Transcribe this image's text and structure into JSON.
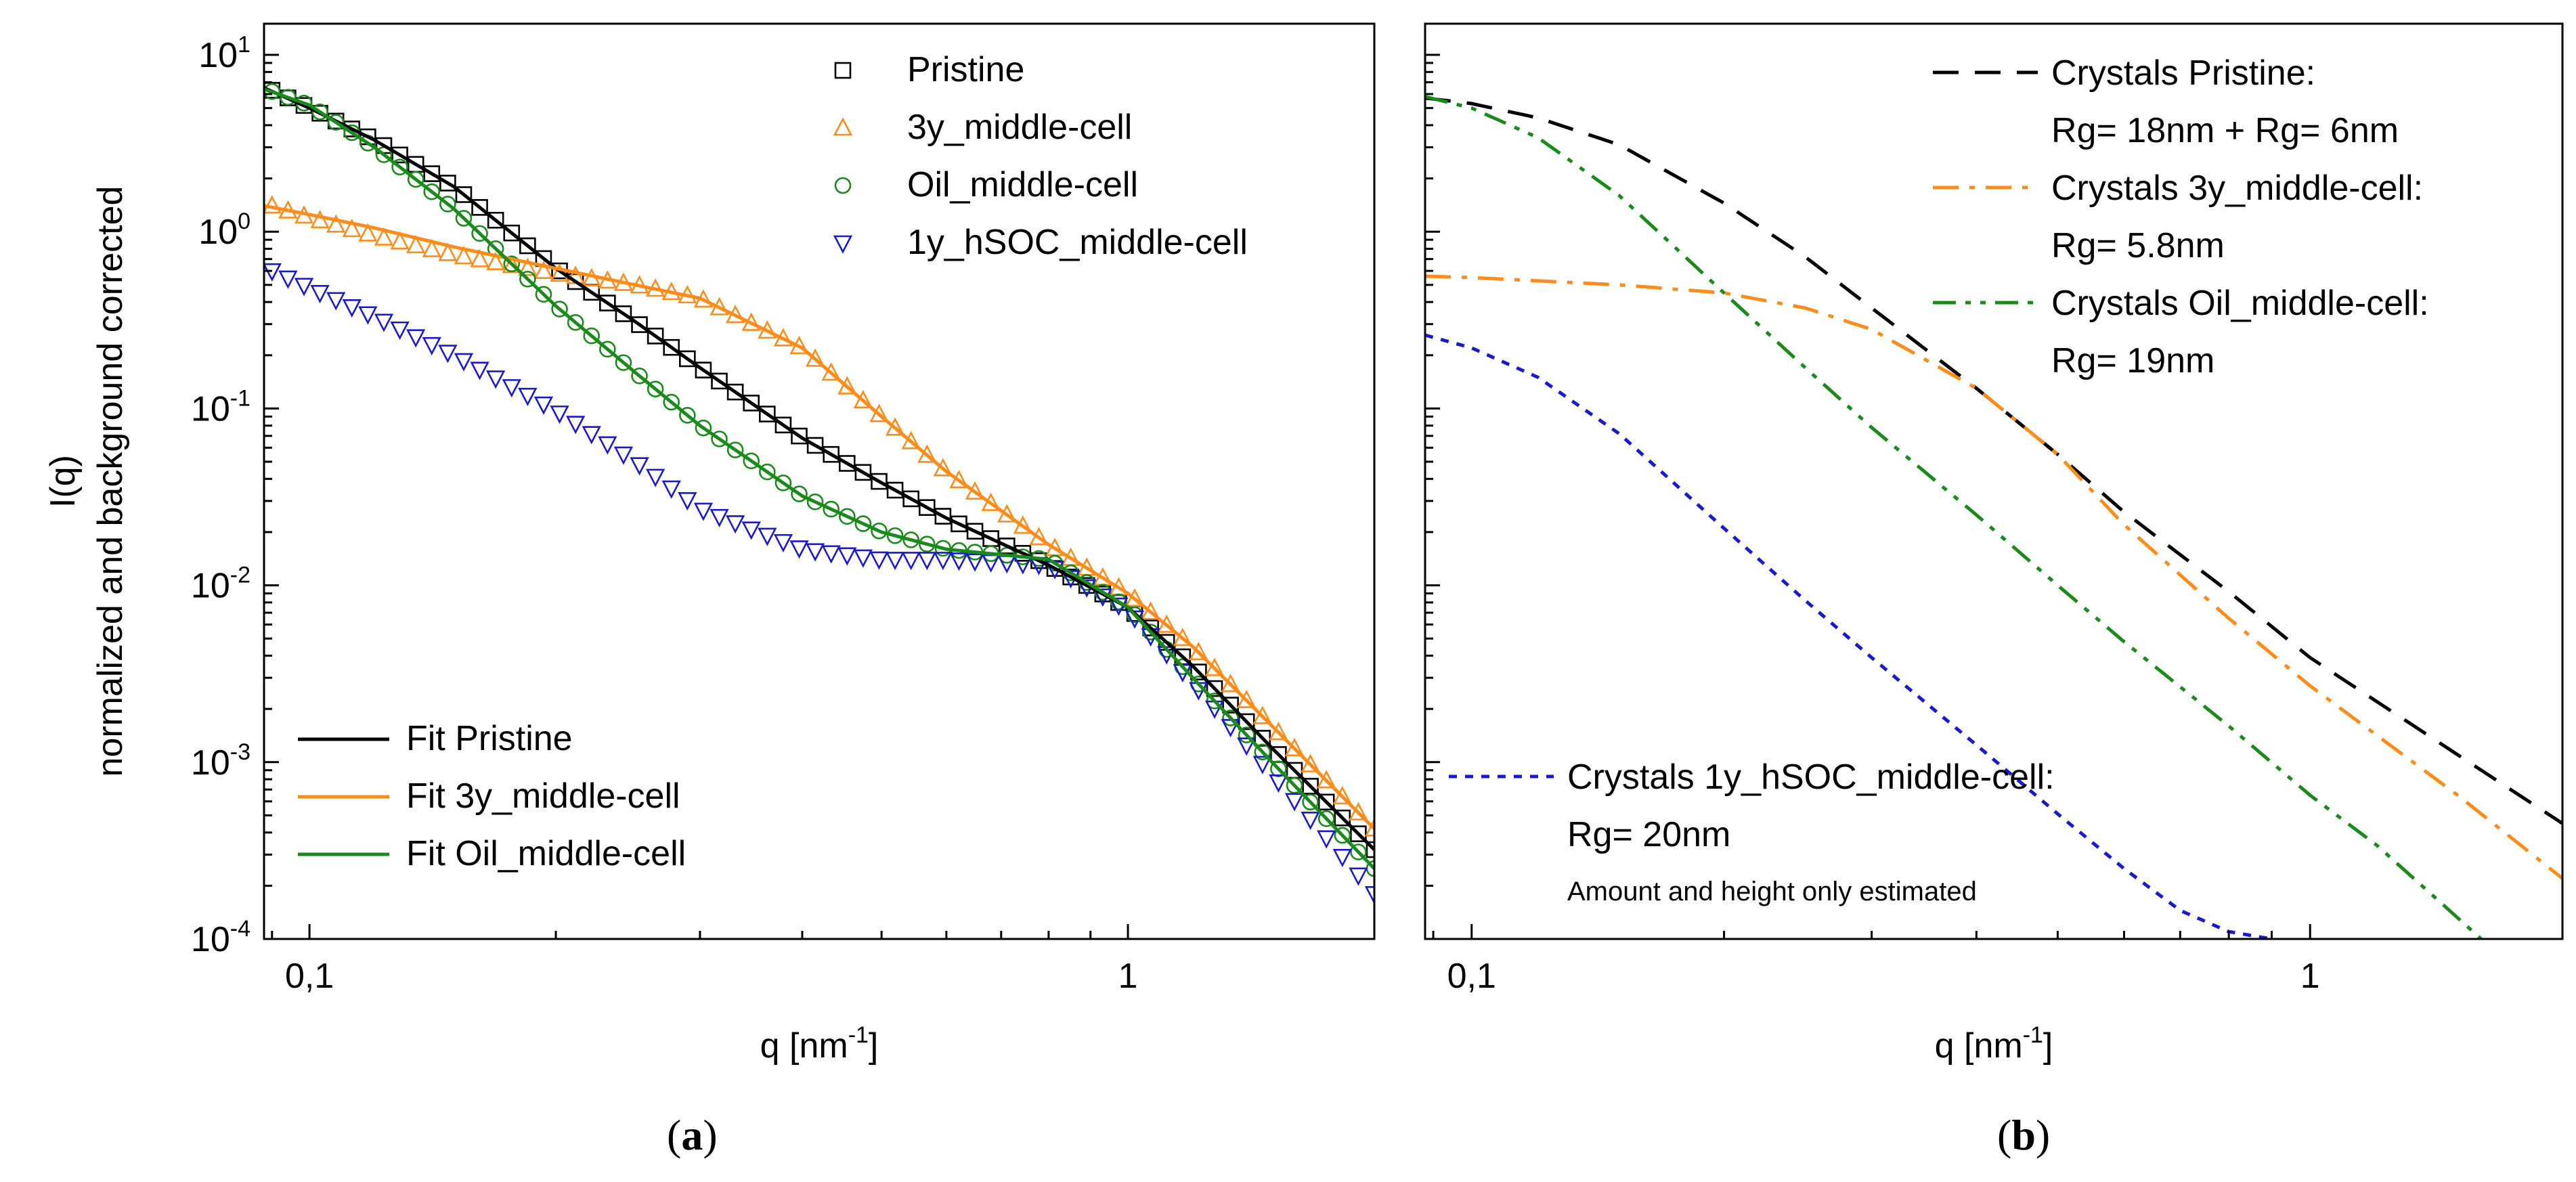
{
  "chart_data": [
    {
      "type": "scatter",
      "panel_label": "a",
      "title": "",
      "xlabel": "q [nm",
      "xlabel_sup": "-1",
      "xlabel_end": "]",
      "ylabel_line1": "I(q)",
      "ylabel_line2": "normalized and background corrected",
      "xscale": "log",
      "yscale": "log",
      "xlim": [
        0.088,
        2.0
      ],
      "ylim": [
        0.0001,
        15
      ],
      "x_ticks": [
        {
          "value": 0.1,
          "label": "0,1"
        },
        {
          "value": 1,
          "label": "1"
        }
      ],
      "y_ticks": [
        {
          "value": 10,
          "base": "10",
          "exp": "1"
        },
        {
          "value": 1,
          "base": "10",
          "exp": "0"
        },
        {
          "value": 0.1,
          "base": "10",
          "exp": "-1"
        },
        {
          "value": 0.01,
          "base": "10",
          "exp": "-2"
        },
        {
          "value": 0.001,
          "base": "10",
          "exp": "-3"
        },
        {
          "value": 0.0001,
          "base": "10",
          "exp": "-4"
        }
      ],
      "legend_markers": [
        {
          "name": "Pristine",
          "marker": "square",
          "color": "#000000"
        },
        {
          "name": "3y_middle-cell",
          "marker": "triangle-up",
          "color": "#ff8c1a"
        },
        {
          "name": "Oil_middle-cell",
          "marker": "circle",
          "color": "#1a8a1a"
        },
        {
          "name": "1y_hSOC_middle-cell",
          "marker": "triangle-down",
          "color": "#1a1acc"
        }
      ],
      "legend_lines": [
        {
          "name": "Fit Pristine",
          "color": "#000000"
        },
        {
          "name": "Fit 3y_middle-cell",
          "color": "#ff8c1a"
        },
        {
          "name": "Fit Oil_middle-cell",
          "color": "#1a8a1a"
        }
      ],
      "series": [
        {
          "name": "Pristine",
          "marker": "square",
          "color": "#000000",
          "x": [
            0.09,
            0.1,
            0.12,
            0.15,
            0.2,
            0.25,
            0.3,
            0.4,
            0.5,
            0.6,
            0.8,
            1.0,
            1.2,
            1.5,
            2.0
          ],
          "y": [
            6.3,
            5.0,
            3.3,
            1.8,
            0.62,
            0.31,
            0.17,
            0.068,
            0.038,
            0.024,
            0.013,
            0.0075,
            0.0035,
            0.0012,
            0.00032
          ]
        },
        {
          "name": "3y_middle-cell",
          "marker": "triangle-up",
          "color": "#ff8c1a",
          "x": [
            0.09,
            0.1,
            0.12,
            0.15,
            0.2,
            0.25,
            0.3,
            0.4,
            0.5,
            0.6,
            0.8,
            1.0,
            1.2,
            1.5,
            2.0
          ],
          "y": [
            1.4,
            1.2,
            0.95,
            0.74,
            0.58,
            0.5,
            0.42,
            0.22,
            0.09,
            0.044,
            0.017,
            0.009,
            0.0045,
            0.0016,
            0.00042
          ]
        },
        {
          "name": "Oil_middle-cell",
          "marker": "circle",
          "color": "#1a8a1a",
          "x": [
            0.09,
            0.1,
            0.12,
            0.15,
            0.2,
            0.25,
            0.3,
            0.4,
            0.5,
            0.6,
            0.8,
            1.0,
            1.2,
            1.5,
            2.0
          ],
          "y": [
            6.2,
            5.2,
            3.0,
            1.35,
            0.38,
            0.16,
            0.08,
            0.032,
            0.02,
            0.016,
            0.014,
            0.0075,
            0.003,
            0.001,
            0.00025
          ]
        },
        {
          "name": "1y_hSOC_middle-cell",
          "marker": "triangle-down",
          "color": "#1a1acc",
          "x": [
            0.09,
            0.1,
            0.12,
            0.15,
            0.2,
            0.25,
            0.3,
            0.4,
            0.5,
            0.6,
            0.8,
            1.0,
            1.2,
            1.5,
            2.0
          ],
          "y": [
            0.6,
            0.48,
            0.33,
            0.2,
            0.097,
            0.05,
            0.027,
            0.016,
            0.014,
            0.014,
            0.013,
            0.0072,
            0.0028,
            0.00085,
            0.00018
          ]
        }
      ],
      "fits": [
        {
          "name": "Fit Pristine",
          "color": "#000000",
          "x": [
            0.088,
            0.1,
            0.12,
            0.15,
            0.2,
            0.25,
            0.3,
            0.4,
            0.5,
            0.6,
            0.8,
            1.0,
            1.2,
            1.5,
            2.0
          ],
          "y": [
            6.5,
            5.0,
            3.3,
            1.8,
            0.62,
            0.31,
            0.17,
            0.068,
            0.038,
            0.024,
            0.013,
            0.0075,
            0.0035,
            0.0012,
            0.00032
          ]
        },
        {
          "name": "Fit 3y_middle-cell",
          "color": "#ff8c1a",
          "x": [
            0.088,
            0.1,
            0.12,
            0.15,
            0.2,
            0.25,
            0.3,
            0.4,
            0.5,
            0.6,
            0.8,
            1.0,
            1.2,
            1.5,
            2.0
          ],
          "y": [
            1.4,
            1.25,
            1.05,
            0.82,
            0.62,
            0.5,
            0.42,
            0.22,
            0.09,
            0.044,
            0.017,
            0.009,
            0.0045,
            0.0016,
            0.00042
          ]
        },
        {
          "name": "Fit Oil_middle-cell",
          "color": "#1a8a1a",
          "x": [
            0.088,
            0.1,
            0.12,
            0.15,
            0.2,
            0.25,
            0.3,
            0.4,
            0.5,
            0.6,
            0.8,
            1.0,
            1.2,
            1.5,
            2.0
          ],
          "y": [
            6.4,
            5.2,
            3.0,
            1.35,
            0.38,
            0.16,
            0.08,
            0.032,
            0.02,
            0.016,
            0.014,
            0.0075,
            0.003,
            0.001,
            0.00025
          ]
        }
      ]
    },
    {
      "type": "line",
      "panel_label": "b",
      "title": "",
      "xlabel": "q [nm",
      "xlabel_sup": "-1",
      "xlabel_end": "]",
      "xscale": "log",
      "yscale": "log",
      "xlim": [
        0.088,
        2.0
      ],
      "ylim": [
        0.0001,
        15
      ],
      "x_ticks": [
        {
          "value": 0.1,
          "label": "0,1"
        },
        {
          "value": 1,
          "label": "1"
        }
      ],
      "series": [
        {
          "name": "Crystals Pristine:",
          "sub": "Rg= 18nm + Rg= 6nm",
          "dash": "dash",
          "color": "#000000",
          "x": [
            0.088,
            0.1,
            0.12,
            0.15,
            0.2,
            0.25,
            0.3,
            0.4,
            0.5,
            0.6,
            0.8,
            1.0,
            1.5,
            2.0
          ],
          "y": [
            5.7,
            5.3,
            4.4,
            3.1,
            1.45,
            0.72,
            0.37,
            0.13,
            0.055,
            0.026,
            0.0092,
            0.0039,
            0.0011,
            0.00045
          ]
        },
        {
          "name": "Crystals 3y_middle-cell:",
          "sub": "Rg= 5.8nm",
          "dash": "dashdot",
          "color": "#ff8c1a",
          "x": [
            0.088,
            0.1,
            0.15,
            0.2,
            0.25,
            0.3,
            0.4,
            0.5,
            0.6,
            0.8,
            1.0,
            1.5,
            2.0
          ],
          "y": [
            0.56,
            0.55,
            0.5,
            0.45,
            0.37,
            0.28,
            0.13,
            0.055,
            0.022,
            0.0065,
            0.0027,
            0.00065,
            0.00022
          ]
        },
        {
          "name": "Crystals Oil_middle-cell:",
          "sub": "Rg= 19nm",
          "dash": "dashdotdot",
          "color": "#1a8a1a",
          "x": [
            0.088,
            0.1,
            0.12,
            0.15,
            0.2,
            0.25,
            0.3,
            0.4,
            0.5,
            0.6,
            0.8,
            1.0,
            1.2,
            1.6
          ],
          "y": [
            5.8,
            5.0,
            3.4,
            1.6,
            0.45,
            0.17,
            0.078,
            0.025,
            0.01,
            0.0048,
            0.0016,
            0.00065,
            0.00034,
            0.0001
          ]
        },
        {
          "name": "Crystals 1y_hSOC_middle-cell:",
          "sub": "Rg= 20nm",
          "dash": "dot",
          "color": "#1a1acc",
          "x": [
            0.088,
            0.1,
            0.12,
            0.15,
            0.2,
            0.25,
            0.3,
            0.4,
            0.5,
            0.6,
            0.7,
            0.8,
            0.9
          ],
          "y": [
            0.26,
            0.22,
            0.15,
            0.072,
            0.021,
            0.0082,
            0.0039,
            0.00125,
            0.00051,
            0.00025,
            0.000145,
            0.00011,
            0.0001
          ]
        }
      ],
      "annotation": "Amount and height only estimated"
    }
  ],
  "captions": {
    "a": "a",
    "b": "b"
  }
}
